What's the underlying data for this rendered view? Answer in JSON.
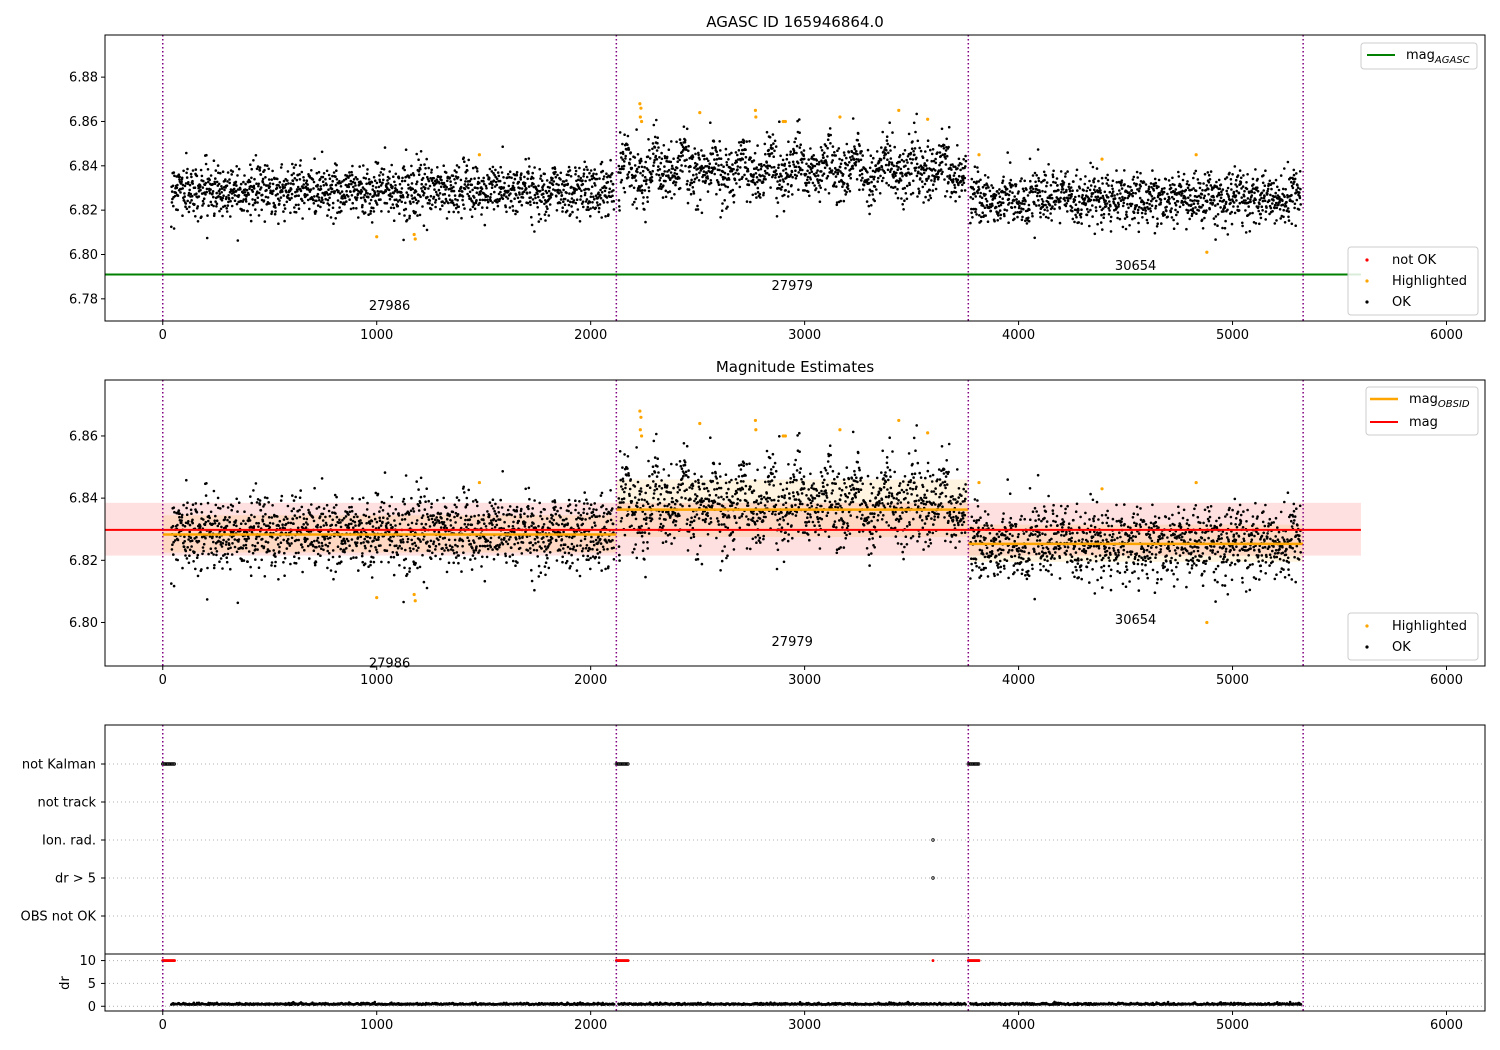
{
  "colors": {
    "ok": "#000000",
    "highlighted": "#ffa500",
    "not_ok": "#ff0000",
    "mag_agasc": "#008000",
    "mag_obsid": "#ffa500",
    "mag": "#ff0000",
    "obs_boundary": "#800080",
    "grid": "#b0b0b0"
  },
  "chart_data": [
    {
      "type": "scatter",
      "title": "AGASC ID 165946864.0",
      "xlim": [
        -270,
        6180
      ],
      "ylim": [
        6.77,
        6.899
      ],
      "xticks": [
        0,
        1000,
        2000,
        3000,
        4000,
        5000,
        6000
      ],
      "yticks": [
        6.78,
        6.8,
        6.82,
        6.84,
        6.86,
        6.88
      ],
      "ytick_labels": [
        "6.78",
        "6.80",
        "6.82",
        "6.84",
        "6.86",
        "6.88"
      ],
      "obs_boundaries": [
        0,
        2120,
        3765,
        5330
      ],
      "obs_labels": [
        {
          "text": "27986",
          "x": 1060,
          "y": 6.775
        },
        {
          "text": "27979",
          "x": 2942,
          "y": 6.784
        },
        {
          "text": "30654",
          "x": 4547,
          "y": 6.793
        }
      ],
      "mag_agasc": {
        "value": 6.791,
        "x_range": [
          -270,
          5600
        ]
      },
      "obs_segments": [
        {
          "x": [
            40,
            2110
          ],
          "center": 6.8285,
          "spread": 0.0058,
          "osc": 0.002
        },
        {
          "x": [
            2130,
            3755
          ],
          "center": 6.8355,
          "spread": 0.0065,
          "osc": 0.009
        },
        {
          "x": [
            3775,
            5320
          ],
          "center": 6.8245,
          "spread": 0.0058,
          "osc": 0.002
        }
      ],
      "highlighted_points": [
        [
          1000,
          6.808
        ],
        [
          1175,
          6.809
        ],
        [
          1180,
          6.807
        ],
        [
          1480,
          6.845
        ],
        [
          2230,
          6.868
        ],
        [
          2235,
          6.866
        ],
        [
          2232,
          6.862
        ],
        [
          2238,
          6.86
        ],
        [
          2510,
          6.864
        ],
        [
          2770,
          6.865
        ],
        [
          2772,
          6.862
        ],
        [
          2900,
          6.86
        ],
        [
          2910,
          6.86
        ],
        [
          3165,
          6.862
        ],
        [
          3440,
          6.865
        ],
        [
          3575,
          6.861
        ],
        [
          3815,
          6.845
        ],
        [
          4390,
          6.843
        ],
        [
          4830,
          6.845
        ],
        [
          4880,
          6.801
        ]
      ],
      "legend_lines": [
        {
          "label": "mag",
          "sub": "AGASC",
          "color": "#008000"
        }
      ],
      "legend_points": [
        {
          "label": "not OK",
          "color": "#ff0000"
        },
        {
          "label": "Highlighted",
          "color": "#ffa500"
        },
        {
          "label": "OK",
          "color": "#000000"
        }
      ]
    },
    {
      "type": "scatter",
      "title": "Magnitude Estimates",
      "xlim": [
        -270,
        6180
      ],
      "ylim": [
        6.786,
        6.878
      ],
      "xticks": [
        0,
        1000,
        2000,
        3000,
        4000,
        5000,
        6000
      ],
      "yticks": [
        6.8,
        6.82,
        6.84,
        6.86
      ],
      "ytick_labels": [
        "6.80",
        "6.82",
        "6.84",
        "6.86"
      ],
      "obs_boundaries": [
        0,
        2120,
        3765,
        5330
      ],
      "obs_labels": [
        {
          "text": "27986",
          "x": 1060,
          "y": 6.7855
        },
        {
          "text": "27979",
          "x": 2942,
          "y": 6.7925
        },
        {
          "text": "30654",
          "x": 4547,
          "y": 6.7995
        }
      ],
      "mag": {
        "value": 6.8298,
        "band": [
          6.8215,
          6.8385
        ],
        "x_range": [
          -270,
          5600
        ]
      },
      "mag_obsid": [
        {
          "x": [
            0,
            2120
          ],
          "value": 6.8283,
          "band": [
            6.8225,
            6.8345
          ]
        },
        {
          "x": [
            2120,
            3765
          ],
          "value": 6.8363,
          "band": [
            6.8275,
            6.846
          ]
        },
        {
          "x": [
            3765,
            5330
          ],
          "value": 6.8253,
          "band": [
            6.8195,
            6.8315
          ]
        }
      ],
      "highlighted_points": [
        [
          1000,
          6.808
        ],
        [
          1175,
          6.809
        ],
        [
          1180,
          6.807
        ],
        [
          1480,
          6.845
        ],
        [
          2230,
          6.868
        ],
        [
          2235,
          6.866
        ],
        [
          2232,
          6.862
        ],
        [
          2238,
          6.86
        ],
        [
          2510,
          6.864
        ],
        [
          2770,
          6.865
        ],
        [
          2772,
          6.862
        ],
        [
          2900,
          6.86
        ],
        [
          2910,
          6.86
        ],
        [
          3165,
          6.862
        ],
        [
          3440,
          6.865
        ],
        [
          3575,
          6.861
        ],
        [
          3815,
          6.845
        ],
        [
          4390,
          6.843
        ],
        [
          4830,
          6.845
        ],
        [
          4880,
          6.8
        ]
      ],
      "legend_lines": [
        {
          "label": "mag",
          "sub": "OBSID",
          "color": "#ffa500"
        },
        {
          "label": "mag",
          "sub": "",
          "color": "#ff0000"
        }
      ],
      "legend_points": [
        {
          "label": "Highlighted",
          "color": "#ffa500"
        },
        {
          "label": "OK",
          "color": "#000000"
        }
      ]
    },
    {
      "type": "scatter",
      "title": "",
      "xlim": [
        -270,
        6180
      ],
      "flag_rows": [
        "not Kalman",
        "not track",
        "Ion. rad.",
        "dr > 5",
        "OBS not OK"
      ],
      "flag_points": [
        {
          "row": "not Kalman",
          "x_ranges": [
            [
              0,
              55
            ],
            [
              2120,
              2175
            ],
            [
              3765,
              3815
            ]
          ]
        },
        {
          "row": "Ion. rad.",
          "x_ranges": [
            [
              3600,
              3603
            ]
          ]
        },
        {
          "row": "dr > 5",
          "x_ranges": [
            [
              3600,
              3603
            ]
          ]
        }
      ],
      "dr": {
        "ylabel": "dr",
        "ylim": [
          -0.6,
          11.0
        ],
        "yticks": [
          0,
          5,
          10
        ],
        "ytick_labels": [
          "0",
          "5",
          "10"
        ],
        "clipped_value": 10,
        "clipped_x_ranges": [
          [
            0,
            55
          ],
          [
            2120,
            2175
          ],
          [
            3600,
            3602
          ],
          [
            3765,
            3815
          ]
        ],
        "base_segments": [
          [
            40,
            2110
          ],
          [
            2130,
            3755
          ],
          [
            3775,
            5320
          ]
        ],
        "base_level": 0.35
      },
      "obs_boundaries": [
        0,
        2120,
        3765,
        5330
      ],
      "xticks": [
        0,
        1000,
        2000,
        3000,
        4000,
        5000,
        6000
      ]
    }
  ]
}
